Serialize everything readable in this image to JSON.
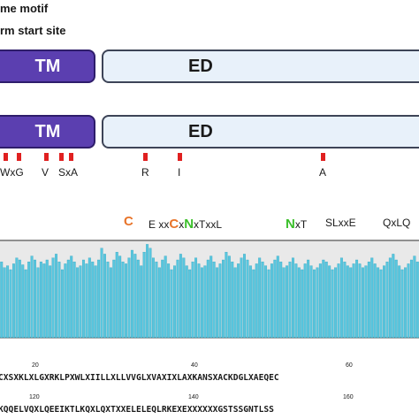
{
  "legend": {
    "line1": "me motif",
    "line2": "rm start site"
  },
  "domains": {
    "tm_label": "TM",
    "ed_label": "ED"
  },
  "markers": [
    {
      "label": "WxG"
    },
    {
      "label": "V"
    },
    {
      "label": "SxA"
    },
    {
      "label": "R"
    },
    {
      "label": "I"
    },
    {
      "label": "A"
    }
  ],
  "motifs": {
    "m1_c": "C",
    "m2_pre": "E xx",
    "m2_c": "C",
    "m2_mid": "x",
    "m2_n": "N",
    "m2_post": "xTxxL",
    "m3_n": "N",
    "m3_post": "xT",
    "m4": "SLxxE",
    "m5": "QxLQ"
  },
  "colors": {
    "orange": "#e8742a",
    "green": "#3bbf2a",
    "bar": "#59c6de",
    "tm": "#5b3fb0",
    "marker": "#e02020"
  },
  "chart_data": {
    "type": "bar",
    "ylim": [
      0,
      1
    ],
    "values": [
      0.78,
      0.72,
      0.74,
      0.7,
      0.76,
      0.82,
      0.8,
      0.75,
      0.7,
      0.78,
      0.84,
      0.8,
      0.72,
      0.78,
      0.76,
      0.8,
      0.74,
      0.82,
      0.86,
      0.78,
      0.7,
      0.76,
      0.8,
      0.84,
      0.78,
      0.72,
      0.74,
      0.8,
      0.76,
      0.82,
      0.78,
      0.74,
      0.8,
      0.92,
      0.86,
      0.78,
      0.72,
      0.8,
      0.88,
      0.84,
      0.78,
      0.76,
      0.82,
      0.9,
      0.86,
      0.8,
      0.74,
      0.88,
      0.96,
      0.92,
      0.82,
      0.78,
      0.72,
      0.8,
      0.84,
      0.76,
      0.7,
      0.74,
      0.8,
      0.86,
      0.82,
      0.74,
      0.7,
      0.78,
      0.82,
      0.76,
      0.72,
      0.74,
      0.8,
      0.84,
      0.78,
      0.72,
      0.76,
      0.8,
      0.88,
      0.84,
      0.78,
      0.72,
      0.76,
      0.82,
      0.86,
      0.8,
      0.74,
      0.7,
      0.76,
      0.82,
      0.78,
      0.74,
      0.7,
      0.76,
      0.8,
      0.84,
      0.78,
      0.72,
      0.74,
      0.78,
      0.82,
      0.76,
      0.72,
      0.7,
      0.76,
      0.8,
      0.74,
      0.7,
      0.72,
      0.76,
      0.8,
      0.78,
      0.74,
      0.7,
      0.72,
      0.76,
      0.82,
      0.78,
      0.74,
      0.72,
      0.76,
      0.8,
      0.76,
      0.72,
      0.74,
      0.78,
      0.82,
      0.76,
      0.72,
      0.7,
      0.74,
      0.78,
      0.82,
      0.86,
      0.8,
      0.74,
      0.7,
      0.72,
      0.76,
      0.8,
      0.84,
      0.78
    ]
  },
  "sequence": {
    "tick_20": "20",
    "tick_40": "40",
    "tick_60": "60",
    "tick_120": "120",
    "tick_140": "140",
    "tick_160": "160",
    "line1": "CXSXKLXLGXRKLPXWLXIILLXLLVVGLXVAXIXLAXKANSXACKDGLXAEQEC",
    "line2": "KQQELVQXLQEEIKTLKQXLQXTXXELELEQLRKEXEXXXXXXGSTSSGNTLSS"
  }
}
